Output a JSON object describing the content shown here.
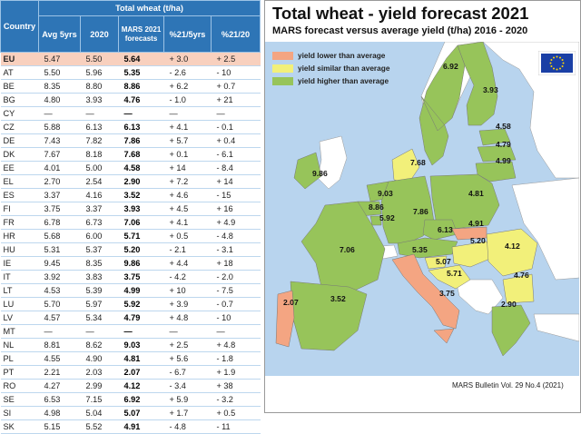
{
  "table": {
    "country_header": "Country",
    "group_header": "Total wheat (t/ha)",
    "columns": [
      "Avg 5yrs",
      "2020",
      "MARS 2021 forecasts",
      "%21/5yrs",
      "%21/20"
    ],
    "rows": [
      {
        "c": "EU",
        "a": "5.47",
        "p": "5.50",
        "m": "5.64",
        "d5": "+ 3.0",
        "d20": "+ 2.5",
        "s5": "pos",
        "s20": "pos"
      },
      {
        "c": "AT",
        "a": "5.50",
        "p": "5.96",
        "m": "5.35",
        "d5": "- 2.6",
        "d20": "- 10",
        "s5": "neg",
        "s20": "neg"
      },
      {
        "c": "BE",
        "a": "8.35",
        "p": "8.80",
        "m": "8.86",
        "d5": "+ 6.2",
        "d20": "+ 0.7",
        "s5": "pos",
        "s20": "pos"
      },
      {
        "c": "BG",
        "a": "4.80",
        "p": "3.93",
        "m": "4.76",
        "d5": "- 1.0",
        "d20": "+ 21",
        "s5": "neg",
        "s20": "pos"
      },
      {
        "c": "CY",
        "a": "—",
        "p": "—",
        "m": "—",
        "d5": "—",
        "d20": "—",
        "s5": "dash",
        "s20": "dash"
      },
      {
        "c": "CZ",
        "a": "5.88",
        "p": "6.13",
        "m": "6.13",
        "d5": "+ 4.1",
        "d20": "- 0.1",
        "s5": "pos",
        "s20": "neg"
      },
      {
        "c": "DE",
        "a": "7.43",
        "p": "7.82",
        "m": "7.86",
        "d5": "+ 5.7",
        "d20": "+ 0.4",
        "s5": "pos",
        "s20": "pos"
      },
      {
        "c": "DK",
        "a": "7.67",
        "p": "8.18",
        "m": "7.68",
        "d5": "+ 0.1",
        "d20": "- 6.1",
        "s5": "pos",
        "s20": "neg"
      },
      {
        "c": "EE",
        "a": "4.01",
        "p": "5.00",
        "m": "4.58",
        "d5": "+ 14",
        "d20": "- 8.4",
        "s5": "pos",
        "s20": "neg"
      },
      {
        "c": "EL",
        "a": "2.70",
        "p": "2.54",
        "m": "2.90",
        "d5": "+ 7.2",
        "d20": "+ 14",
        "s5": "pos",
        "s20": "pos"
      },
      {
        "c": "ES",
        "a": "3.37",
        "p": "4.16",
        "m": "3.52",
        "d5": "+ 4.6",
        "d20": "- 15",
        "s5": "pos",
        "s20": "neg"
      },
      {
        "c": "FI",
        "a": "3.75",
        "p": "3.37",
        "m": "3.93",
        "d5": "+ 4.5",
        "d20": "+ 16",
        "s5": "pos",
        "s20": "pos"
      },
      {
        "c": "FR",
        "a": "6.78",
        "p": "6.73",
        "m": "7.06",
        "d5": "+ 4.1",
        "d20": "+ 4.9",
        "s5": "pos",
        "s20": "pos"
      },
      {
        "c": "HR",
        "a": "5.68",
        "p": "6.00",
        "m": "5.71",
        "d5": "+ 0.5",
        "d20": "- 4.8",
        "s5": "pos",
        "s20": "neg"
      },
      {
        "c": "HU",
        "a": "5.31",
        "p": "5.37",
        "m": "5.20",
        "d5": "- 2.1",
        "d20": "- 3.1",
        "s5": "neg",
        "s20": "neg"
      },
      {
        "c": "IE",
        "a": "9.45",
        "p": "8.35",
        "m": "9.86",
        "d5": "+ 4.4",
        "d20": "+ 18",
        "s5": "pos",
        "s20": "pos"
      },
      {
        "c": "IT",
        "a": "3.92",
        "p": "3.83",
        "m": "3.75",
        "d5": "- 4.2",
        "d20": "- 2.0",
        "s5": "neg",
        "s20": "neg"
      },
      {
        "c": "LT",
        "a": "4.53",
        "p": "5.39",
        "m": "4.99",
        "d5": "+ 10",
        "d20": "- 7.5",
        "s5": "pos",
        "s20": "neg"
      },
      {
        "c": "LU",
        "a": "5.70",
        "p": "5.97",
        "m": "5.92",
        "d5": "+ 3.9",
        "d20": "- 0.7",
        "s5": "pos",
        "s20": "neg"
      },
      {
        "c": "LV",
        "a": "4.57",
        "p": "5.34",
        "m": "4.79",
        "d5": "+ 4.8",
        "d20": "- 10",
        "s5": "pos",
        "s20": "neg"
      },
      {
        "c": "MT",
        "a": "—",
        "p": "—",
        "m": "—",
        "d5": "—",
        "d20": "—",
        "s5": "dash",
        "s20": "dash"
      },
      {
        "c": "NL",
        "a": "8.81",
        "p": "8.62",
        "m": "9.03",
        "d5": "+ 2.5",
        "d20": "+ 4.8",
        "s5": "pos",
        "s20": "pos"
      },
      {
        "c": "PL",
        "a": "4.55",
        "p": "4.90",
        "m": "4.81",
        "d5": "+ 5.6",
        "d20": "- 1.8",
        "s5": "pos",
        "s20": "neg"
      },
      {
        "c": "PT",
        "a": "2.21",
        "p": "2.03",
        "m": "2.07",
        "d5": "- 6.7",
        "d20": "+ 1.9",
        "s5": "neg",
        "s20": "pos"
      },
      {
        "c": "RO",
        "a": "4.27",
        "p": "2.99",
        "m": "4.12",
        "d5": "- 3.4",
        "d20": "+ 38",
        "s5": "neg",
        "s20": "pos"
      },
      {
        "c": "SE",
        "a": "6.53",
        "p": "7.15",
        "m": "6.92",
        "d5": "+ 5.9",
        "d20": "- 3.2",
        "s5": "pos",
        "s20": "neg"
      },
      {
        "c": "SI",
        "a": "4.98",
        "p": "5.04",
        "m": "5.07",
        "d5": "+ 1.7",
        "d20": "+ 0.5",
        "s5": "pos",
        "s20": "pos"
      },
      {
        "c": "SK",
        "a": "5.15",
        "p": "5.52",
        "m": "4.91",
        "d5": "- 4.8",
        "d20": "- 11",
        "s5": "neg",
        "s20": "neg"
      }
    ]
  },
  "map": {
    "title": "Total wheat - yield forecast 2021",
    "subtitle": "MARS forecast versus average yield (t/ha) 2016 - 2020",
    "credit": "MARS Bulletin Vol. 29 No.4 (2021)",
    "colors": {
      "lower": "#f4a582",
      "similar": "#f2f07a",
      "higher": "#97c45a",
      "sea": "#b8d4ee",
      "nonEU": "#ffffff"
    },
    "legend": [
      {
        "label": "yield lower than average",
        "color": "#f4a582"
      },
      {
        "label": "yield similar than average",
        "color": "#f2f07a"
      },
      {
        "label": "yield higher than average",
        "color": "#97c45a"
      }
    ],
    "values": {
      "SE": "6.92",
      "FI": "3.93",
      "EE": "4.58",
      "LV": "4.79",
      "LT": "4.99",
      "IE": "9.86",
      "DK": "7.68",
      "NL": "9.03",
      "BE": "8.86",
      "LU": "5.92",
      "DE": "7.86",
      "PL": "4.81",
      "CZ": "6.13",
      "SK": "4.91",
      "AT": "5.35",
      "HU": "5.20",
      "SI": "5.07",
      "HR": "5.71",
      "RO": "4.12",
      "BG": "4.76",
      "FR": "7.06",
      "IT": "3.75",
      "ES": "3.52",
      "PT": "2.07",
      "EL": "2.90"
    }
  }
}
